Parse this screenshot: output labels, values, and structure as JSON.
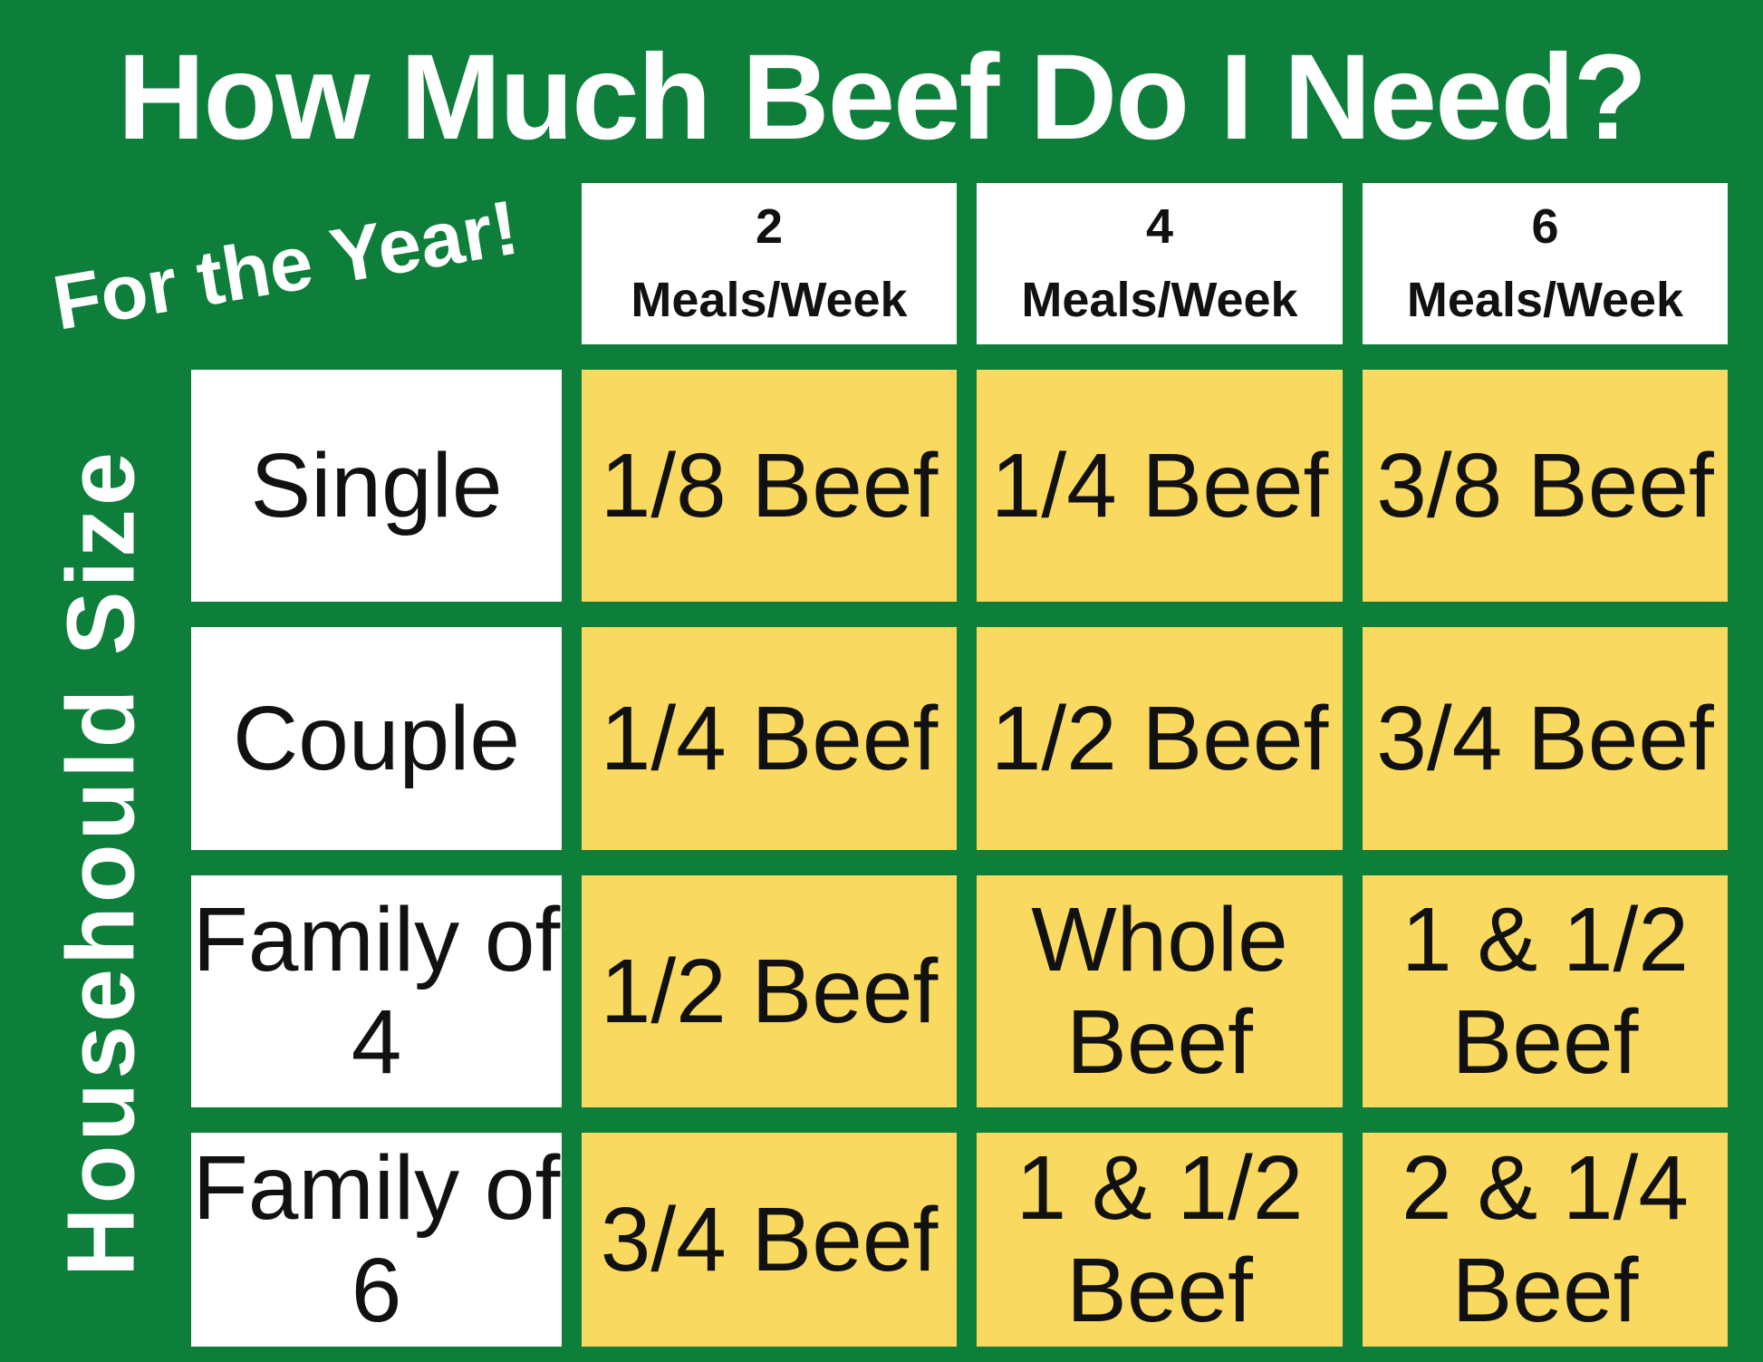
{
  "page": {
    "title": "How Much Beef Do I Need?",
    "subtitle": "For the Year!",
    "row_axis_label": "Househould Size"
  },
  "columns": [
    {
      "count": "2",
      "unit": "Meals/Week"
    },
    {
      "count": "4",
      "unit": "Meals/Week"
    },
    {
      "count": "6",
      "unit": "Meals/Week"
    }
  ],
  "rows": [
    {
      "label": "Single",
      "cells": [
        "1/8 Beef",
        "1/4 Beef",
        "3/8 Beef"
      ]
    },
    {
      "label": "Couple",
      "cells": [
        "1/4 Beef",
        "1/2 Beef",
        "3/4 Beef"
      ]
    },
    {
      "label": "Family of 4",
      "cells": [
        "1/2 Beef",
        "Whole Beef",
        "1 & 1/2 Beef"
      ]
    },
    {
      "label": "Family of 6",
      "cells": [
        "3/4 Beef",
        "1 & 1/2 Beef",
        "2 & 1/4 Beef"
      ]
    }
  ],
  "colors": {
    "background_green": "#0e7e3b",
    "cell_yellow": "#f9d95f",
    "box_white": "#ffffff",
    "text_black": "#111111",
    "text_white": "#ffffff"
  },
  "chart_data": {
    "type": "table",
    "title": "How Much Beef Do I Need?",
    "subtitle": "For the Year!",
    "row_axis_label": "Househould Size",
    "columns": [
      "2 Meals/Week",
      "4 Meals/Week",
      "6 Meals/Week"
    ],
    "row_labels": [
      "Single",
      "Couple",
      "Family of 4",
      "Family of 6"
    ],
    "values": [
      [
        "1/8 Beef",
        "1/4 Beef",
        "3/8 Beef"
      ],
      [
        "1/4 Beef",
        "1/2 Beef",
        "3/4 Beef"
      ],
      [
        "1/2 Beef",
        "Whole Beef",
        "1 & 1/2 Beef"
      ],
      [
        "3/4 Beef",
        "1 & 1/2 Beef",
        "2 & 1/4 Beef"
      ]
    ]
  }
}
